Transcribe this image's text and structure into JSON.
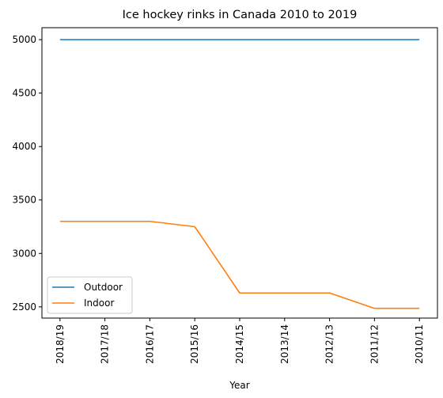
{
  "chart_data": {
    "type": "line",
    "title": "Ice hockey rinks in Canada 2010 to 2019",
    "xlabel": "Year",
    "ylabel": "",
    "categories": [
      "2018/19",
      "2017/18",
      "2016/17",
      "2015/16",
      "2014/15",
      "2013/14",
      "2012/13",
      "2011/12",
      "2010/11"
    ],
    "ylim": [
      2395,
      5112
    ],
    "yticks": [
      2500,
      3000,
      3500,
      4000,
      4500,
      5000
    ],
    "grid": false,
    "legend_position": "lower-left",
    "series": [
      {
        "name": "Outdoor",
        "color": "#1f77b4",
        "values": [
          5000,
          5000,
          5000,
          5000,
          5000,
          5000,
          5000,
          5000,
          5000
        ]
      },
      {
        "name": "Indoor",
        "color": "#ff7f0e",
        "values": [
          3300,
          3300,
          3300,
          3250,
          2630,
          2630,
          2630,
          2486,
          2486
        ]
      }
    ]
  }
}
